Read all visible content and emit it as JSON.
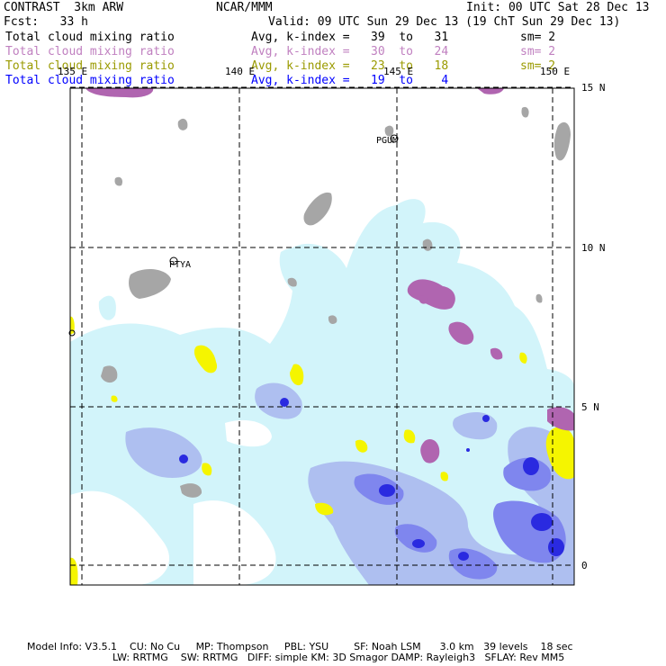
{
  "header": {
    "model": "CONTRAST  3km ARW",
    "center": "NCAR/MMM",
    "init": "Init: 00 UTC Sat 28 Dec 13",
    "fcst": "Fcst:   33 h",
    "valid": "Valid: 09 UTC Sun 29 Dec 13 (19 ChT Sun 29 Dec 13)"
  },
  "legend": [
    {
      "field": "Total cloud mixing ratio",
      "range": "Avg, k-index =   39  to   31",
      "smooth": "sm= 2",
      "color": "#000000"
    },
    {
      "field": "Total cloud mixing ratio",
      "range": "Avg, k-index =   30  to   24",
      "smooth": "sm= 2",
      "color": "#c080c0"
    },
    {
      "field": "Total cloud mixing ratio",
      "range": "Avg, k-index =   23  to   18",
      "smooth": "sm= 2",
      "color": "#9a9a00"
    },
    {
      "field": "Total cloud mixing ratio",
      "range": "Avg, k-index =   19  to    4",
      "smooth": "sm= 2",
      "color": "#0000ff"
    }
  ],
  "map": {
    "lon_labels": [
      "135 E",
      "140 E",
      "145 E",
      "150 E"
    ],
    "lat_labels": [
      "15 N",
      "10 N",
      "5 N",
      "0"
    ],
    "stations": [
      "PGUM",
      "PTYA"
    ],
    "colors": {
      "light_cyan": "#d2f4fa",
      "light_blue": "#aebff0",
      "mid_blue": "#7f86ee",
      "dark_blue": "#2a2ae0",
      "yellow": "#f5f500",
      "purple": "#b065b0",
      "gray": "#a6a6a6"
    }
  },
  "footer": {
    "line1": "Model Info: V3.5.1    CU: No Cu     MP: Thompson     PBL: YSU        SF: Noah LSM      3.0 km   39 levels    18 sec",
    "line2": "LW: RRTMG    SW: RRTMG   DIFF: simple KM: 3D Smagor DAMP: Rayleigh3   SFLAY: Rev MM5"
  }
}
